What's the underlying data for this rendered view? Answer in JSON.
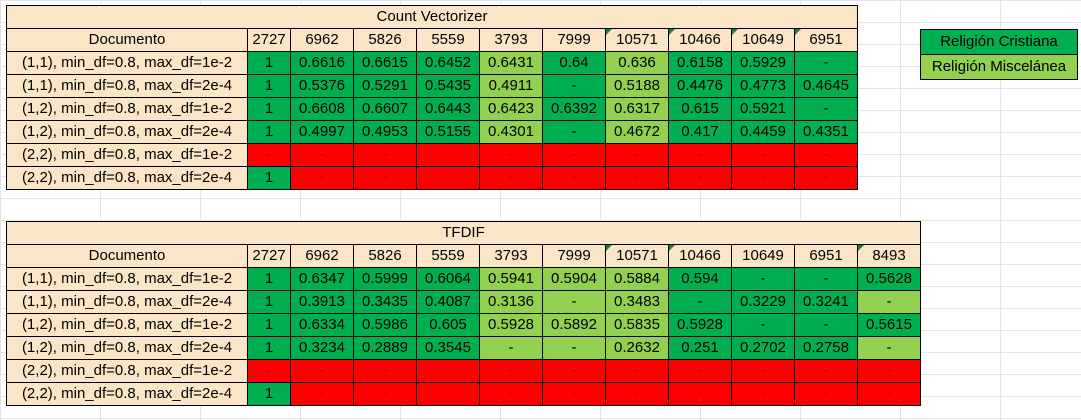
{
  "colors": {
    "header_bg": "#fbe5c7",
    "green": "#00b050",
    "light_green": "#92d050",
    "red": "#ff0000"
  },
  "legend": [
    {
      "label": "Religión Cristiana",
      "color": "green"
    },
    {
      "label": "Religión Miscelánea",
      "color": "light_green"
    }
  ],
  "tables": [
    {
      "title": "Count Vectorizer",
      "doc_header": "Documento",
      "columns": [
        {
          "label": "2727",
          "corner": false
        },
        {
          "label": "6962",
          "corner": false
        },
        {
          "label": "5826",
          "corner": false
        },
        {
          "label": "5559",
          "corner": false
        },
        {
          "label": "3793",
          "corner": false
        },
        {
          "label": "7999",
          "corner": false
        },
        {
          "label": "10571",
          "corner": true
        },
        {
          "label": "10466",
          "corner": true
        },
        {
          "label": "10649",
          "corner": true
        },
        {
          "label": "6951",
          "corner": true
        }
      ],
      "rows": [
        {
          "doc": "(1,1), min_df=0.8, max_df=1e-2",
          "cells": [
            [
              "1",
              "g"
            ],
            [
              "0.6616",
              "g"
            ],
            [
              "0.6615",
              "g"
            ],
            [
              "0.6452",
              "g"
            ],
            [
              "0.6431",
              "lg"
            ],
            [
              "0.64",
              "g"
            ],
            [
              "0.636",
              "lg"
            ],
            [
              "0.6158",
              "g"
            ],
            [
              "0.5929",
              "g"
            ],
            [
              "-",
              "g"
            ]
          ]
        },
        {
          "doc": "(1,1), min_df=0.8, max_df=2e-4",
          "cells": [
            [
              "1",
              "g"
            ],
            [
              "0.5376",
              "g"
            ],
            [
              "0.5291",
              "g"
            ],
            [
              "0.5435",
              "g"
            ],
            [
              "0.4911",
              "lg"
            ],
            [
              "-",
              "g"
            ],
            [
              "0.5188",
              "lg"
            ],
            [
              "0.4476",
              "g"
            ],
            [
              "0.4773",
              "g"
            ],
            [
              "0.4645",
              "g"
            ]
          ]
        },
        {
          "doc": "(1,2), min_df=0.8, max_df=1e-2",
          "cells": [
            [
              "1",
              "g"
            ],
            [
              "0.6608",
              "g"
            ],
            [
              "0.6607",
              "g"
            ],
            [
              "0.6443",
              "g"
            ],
            [
              "0.6423",
              "lg"
            ],
            [
              "0.6392",
              "g"
            ],
            [
              "0.6317",
              "lg"
            ],
            [
              "0.615",
              "g"
            ],
            [
              "0.5921",
              "g"
            ],
            [
              "-",
              "g"
            ]
          ]
        },
        {
          "doc": "(1,2), min_df=0.8, max_df=2e-4",
          "cells": [
            [
              "1",
              "g"
            ],
            [
              "0.4997",
              "g"
            ],
            [
              "0.4953",
              "g"
            ],
            [
              "0.5155",
              "g"
            ],
            [
              "0.4301",
              "lg"
            ],
            [
              "-",
              "g"
            ],
            [
              "0.4672",
              "lg"
            ],
            [
              "0.417",
              "g"
            ],
            [
              "0.4459",
              "g"
            ],
            [
              "0.4351",
              "g"
            ]
          ]
        },
        {
          "doc": "(2,2), min_df=0.8, max_df=1e-2",
          "cells": [
            [
              "-",
              "r"
            ],
            [
              "-",
              "r"
            ],
            [
              "-",
              "r"
            ],
            [
              "-",
              "r"
            ],
            [
              "-",
              "r"
            ],
            [
              "-",
              "r"
            ],
            [
              "-",
              "r"
            ],
            [
              "-",
              "r"
            ],
            [
              "-",
              "r"
            ],
            [
              "-",
              "r"
            ]
          ]
        },
        {
          "doc": "(2,2), min_df=0.8, max_df=2e-4",
          "cells": [
            [
              "1",
              "g"
            ],
            [
              "-",
              "r"
            ],
            [
              "-",
              "r"
            ],
            [
              "-",
              "r"
            ],
            [
              "-",
              "r"
            ],
            [
              "-",
              "r"
            ],
            [
              "-",
              "r"
            ],
            [
              "-",
              "r"
            ],
            [
              "-",
              "r"
            ],
            [
              "-",
              "r"
            ]
          ]
        }
      ]
    },
    {
      "title": "TFDIF",
      "doc_header": "Documento",
      "columns": [
        {
          "label": "2727",
          "corner": false
        },
        {
          "label": "6962",
          "corner": false
        },
        {
          "label": "5826",
          "corner": false
        },
        {
          "label": "5559",
          "corner": false
        },
        {
          "label": "3793",
          "corner": false
        },
        {
          "label": "7999",
          "corner": false
        },
        {
          "label": "10571",
          "corner": true
        },
        {
          "label": "10466",
          "corner": true
        },
        {
          "label": "10649",
          "corner": false
        },
        {
          "label": "6951",
          "corner": false
        },
        {
          "label": "8493",
          "corner": true
        }
      ],
      "rows": [
        {
          "doc": "(1,1), min_df=0.8, max_df=1e-2",
          "cells": [
            [
              "1",
              "g"
            ],
            [
              "0.6347",
              "g"
            ],
            [
              "0.5999",
              "g"
            ],
            [
              "0.6064",
              "g"
            ],
            [
              "0.5941",
              "lg"
            ],
            [
              "0.5904",
              "lg"
            ],
            [
              "0.5884",
              "lg"
            ],
            [
              "0.594",
              "g"
            ],
            [
              "-",
              "g"
            ],
            [
              "-",
              "g"
            ],
            [
              "0.5628",
              "g"
            ]
          ]
        },
        {
          "doc": "(1,1), min_df=0.8, max_df=2e-4",
          "cells": [
            [
              "1",
              "g"
            ],
            [
              "0.3913",
              "g"
            ],
            [
              "0.3435",
              "g"
            ],
            [
              "0.4087",
              "g"
            ],
            [
              "0.3136",
              "lg"
            ],
            [
              "-",
              "lg"
            ],
            [
              "0.3483",
              "lg"
            ],
            [
              "-",
              "g"
            ],
            [
              "0.3229",
              "g"
            ],
            [
              "0.3241",
              "g"
            ],
            [
              "-",
              "lg"
            ]
          ]
        },
        {
          "doc": "(1,2), min_df=0.8, max_df=1e-2",
          "cells": [
            [
              "1",
              "g"
            ],
            [
              "0.6334",
              "g"
            ],
            [
              "0.5986",
              "g"
            ],
            [
              "0.605",
              "g"
            ],
            [
              "0.5928",
              "lg"
            ],
            [
              "0.5892",
              "lg"
            ],
            [
              "0.5835",
              "lg"
            ],
            [
              "0.5928",
              "g"
            ],
            [
              "-",
              "g"
            ],
            [
              "-",
              "g"
            ],
            [
              "0.5615",
              "g"
            ]
          ]
        },
        {
          "doc": "(1,2), min_df=0.8, max_df=2e-4",
          "cells": [
            [
              "1",
              "g"
            ],
            [
              "0.3234",
              "g"
            ],
            [
              "0.2889",
              "g"
            ],
            [
              "0.3545",
              "g"
            ],
            [
              "-",
              "lg"
            ],
            [
              "-",
              "lg"
            ],
            [
              "0.2632",
              "lg"
            ],
            [
              "0.251",
              "g"
            ],
            [
              "0.2702",
              "g"
            ],
            [
              "0.2758",
              "g"
            ],
            [
              "-",
              "lg"
            ]
          ]
        },
        {
          "doc": "(2,2), min_df=0.8, max_df=1e-2",
          "cells": [
            [
              "-",
              "r"
            ],
            [
              "-",
              "r"
            ],
            [
              "-",
              "r"
            ],
            [
              "-",
              "r"
            ],
            [
              "-",
              "r"
            ],
            [
              "-",
              "r"
            ],
            [
              "-",
              "r"
            ],
            [
              "-",
              "r"
            ],
            [
              "-",
              "r"
            ],
            [
              "-",
              "r"
            ],
            [
              "-",
              "r"
            ]
          ]
        },
        {
          "doc": "(2,2), min_df=0.8, max_df=2e-4",
          "cells": [
            [
              "1",
              "g"
            ],
            [
              "-",
              "r"
            ],
            [
              "-",
              "r"
            ],
            [
              "-",
              "r"
            ],
            [
              "-",
              "r"
            ],
            [
              "-",
              "r"
            ],
            [
              "-",
              "r"
            ],
            [
              "-",
              "r"
            ],
            [
              "-",
              "r"
            ],
            [
              "-",
              "r"
            ],
            [
              "-",
              "r"
            ]
          ]
        }
      ]
    }
  ]
}
